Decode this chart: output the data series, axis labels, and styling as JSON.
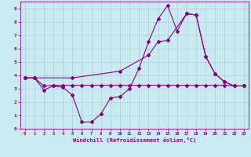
{
  "xlabel": "Windchill (Refroidissement éolien,°C)",
  "xlim": [
    -0.5,
    23.5
  ],
  "ylim": [
    0,
    9.5
  ],
  "xticks": [
    0,
    1,
    2,
    3,
    4,
    5,
    6,
    7,
    8,
    9,
    10,
    11,
    12,
    13,
    14,
    15,
    16,
    17,
    18,
    19,
    20,
    21,
    22,
    23
  ],
  "yticks": [
    0,
    1,
    2,
    3,
    4,
    5,
    6,
    7,
    8,
    9
  ],
  "bg_color": "#c8eaf0",
  "line_color": "#880088",
  "grid_color": "#b0ccd8",
  "line1_x": [
    0,
    1,
    2,
    3,
    4,
    5,
    6,
    7,
    8,
    9,
    10,
    11,
    12,
    13,
    14,
    15,
    16,
    17,
    18,
    19,
    20,
    21,
    22,
    23
  ],
  "line1_y": [
    3.8,
    3.8,
    2.9,
    3.2,
    3.1,
    2.5,
    0.5,
    0.5,
    1.1,
    2.3,
    2.4,
    3.0,
    4.5,
    6.5,
    8.2,
    9.2,
    7.3,
    8.6,
    8.5,
    5.4,
    4.1,
    3.5,
    3.2,
    3.2
  ],
  "line2_x": [
    0,
    1,
    2,
    3,
    4,
    5,
    6,
    7,
    8,
    9,
    10,
    11,
    12,
    13,
    14,
    15,
    16,
    17,
    18,
    19,
    20,
    21,
    22,
    23
  ],
  "line2_y": [
    3.8,
    3.8,
    3.2,
    3.25,
    3.25,
    3.25,
    3.25,
    3.25,
    3.25,
    3.25,
    3.25,
    3.25,
    3.25,
    3.25,
    3.25,
    3.25,
    3.25,
    3.25,
    3.25,
    3.25,
    3.25,
    3.25,
    3.2,
    3.2
  ],
  "line3_x": [
    0,
    1,
    5,
    10,
    13,
    14,
    15,
    17,
    18,
    19,
    20,
    21,
    22,
    23
  ],
  "line3_y": [
    3.8,
    3.8,
    3.8,
    4.3,
    5.5,
    6.5,
    6.6,
    8.6,
    8.5,
    5.4,
    4.1,
    3.5,
    3.2,
    3.2
  ]
}
